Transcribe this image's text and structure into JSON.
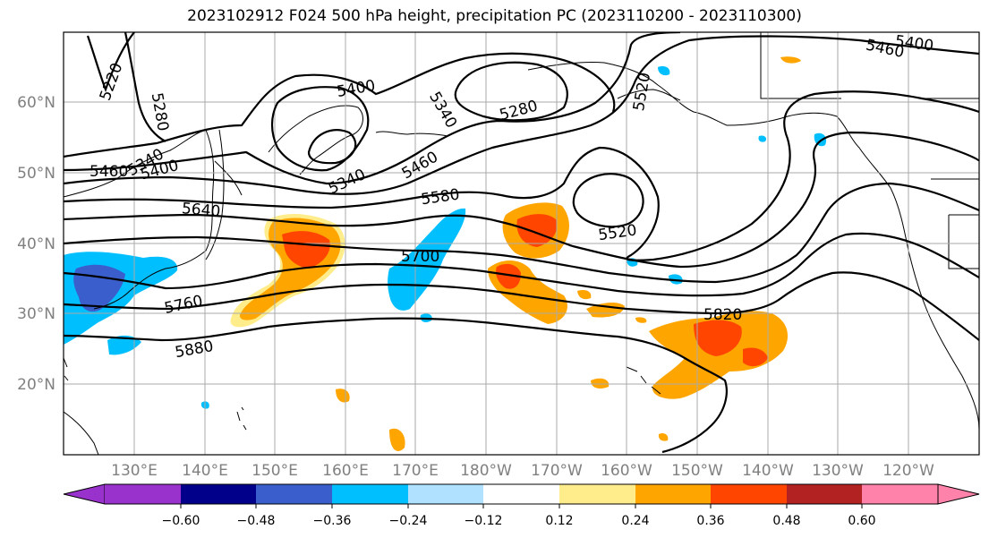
{
  "title": "2023102912 F024 500 hPa height, precipitation PC (2023110200 - 2023110300)",
  "lat_labels": [
    "60°N",
    "50°N",
    "40°N",
    "30°N",
    "20°N"
  ],
  "lon_labels": [
    "130°E",
    "140°E",
    "150°E",
    "160°E",
    "170°E",
    "180°W",
    "170°W",
    "160°W",
    "150°W",
    "140°W",
    "130°W",
    "120°W"
  ],
  "colorbar": {
    "ticks": [
      "−0.60",
      "−0.48",
      "−0.36",
      "−0.24",
      "−0.12",
      "0.12",
      "0.24",
      "0.36",
      "0.48",
      "0.60"
    ],
    "colors": [
      "#9932cc",
      "#00008b",
      "#3a5fcd",
      "#00bfff",
      "#b0e2ff",
      "#ffffff",
      "#ffec8b",
      "#ffa500",
      "#ff4500",
      "#b22222",
      "#ff82ab"
    ]
  },
  "contour_labels": [
    {
      "text": "5220"
    },
    {
      "text": "5280"
    },
    {
      "text": "5400"
    },
    {
      "text": "5340"
    },
    {
      "text": "5280"
    },
    {
      "text": "5520"
    },
    {
      "text": "5400"
    },
    {
      "text": "5460"
    },
    {
      "text": "5460"
    },
    {
      "text": "5400"
    },
    {
      "text": "5340"
    },
    {
      "text": "5460"
    },
    {
      "text": "5340"
    },
    {
      "text": "5580"
    },
    {
      "text": "5640"
    },
    {
      "text": "5520"
    },
    {
      "text": "5700"
    },
    {
      "text": "5760"
    },
    {
      "text": "5820"
    },
    {
      "text": "5880"
    }
  ]
}
